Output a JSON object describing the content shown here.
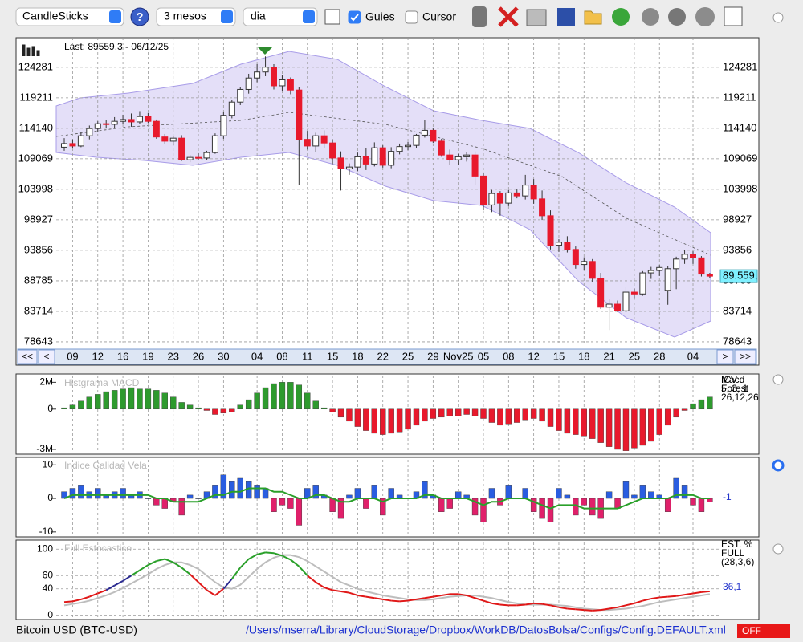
{
  "toolbar": {
    "chart_type": "CandleSticks",
    "help": "?",
    "period": "3 mesos",
    "interval": "dia",
    "guides_label": "Guies",
    "guides_checked": true,
    "cursor_label": "Cursor",
    "cursor_checked": false
  },
  "nav": {
    "first": "<<",
    "prev": "<",
    "next": ">",
    "last": ">>"
  },
  "status_bar": {
    "symbol": "Bitcoin USD (BTC-USD)",
    "config_path": "/Users/mserra/Library/CloudStorage/Dropbox/WorkDB/DatosBolsa/Configs/Config.DEFAULT.xml",
    "state": "OFF"
  },
  "chart_data": [
    {
      "type": "candlestick",
      "annotation": "Last: 89559.3 - 06/12/25",
      "last_price_label": "89.559,",
      "categories": [
        null,
        "09",
        null,
        null,
        "12",
        null,
        null,
        "16",
        null,
        null,
        "19",
        null,
        null,
        "23",
        null,
        null,
        "26",
        null,
        null,
        "30",
        null,
        null,
        null,
        "04",
        null,
        null,
        "08",
        null,
        null,
        "11",
        null,
        null,
        "15",
        null,
        null,
        "18",
        null,
        null,
        "22",
        null,
        null,
        "25",
        null,
        null,
        "29",
        null,
        null,
        "Nov25",
        null,
        null,
        "05",
        null,
        null,
        "08",
        null,
        null,
        "12",
        null,
        null,
        "15",
        null,
        null,
        "18",
        null,
        null,
        "21",
        null,
        null,
        "25",
        null,
        null,
        "28",
        null,
        null,
        null,
        "04",
        null,
        null
      ],
      "ohlc": [
        [
          111000,
          112500,
          110400,
          111600
        ],
        [
          111600,
          112300,
          110800,
          111200
        ],
        [
          111200,
          113500,
          111000,
          112900
        ],
        [
          112900,
          114600,
          112300,
          114100
        ],
        [
          114100,
          115300,
          113600,
          114900
        ],
        [
          114900,
          115500,
          114200,
          114800
        ],
        [
          114800,
          116000,
          114100,
          115300
        ],
        [
          115300,
          116400,
          114800,
          115600
        ],
        [
          115600,
          116600,
          114400,
          115200
        ],
        [
          115200,
          117000,
          114900,
          116100
        ],
        [
          116100,
          116700,
          115000,
          115300
        ],
        [
          115300,
          115600,
          112400,
          112700
        ],
        [
          112700,
          113200,
          111600,
          112000
        ],
        [
          112000,
          112800,
          111300,
          112500
        ],
        [
          112500,
          113000,
          108700,
          108900
        ],
        [
          108900,
          109700,
          108500,
          109300
        ],
        [
          109300,
          110000,
          108800,
          109200
        ],
        [
          109200,
          110400,
          108900,
          110100
        ],
        [
          110100,
          113300,
          109900,
          112900
        ],
        [
          112900,
          116800,
          112400,
          116300
        ],
        [
          116300,
          118900,
          115800,
          118500
        ],
        [
          118500,
          121000,
          118000,
          120600
        ],
        [
          120600,
          123200,
          119900,
          122500
        ],
        [
          122500,
          124800,
          121800,
          123500
        ],
        [
          123500,
          126100,
          122800,
          124300
        ],
        [
          124300,
          124800,
          120600,
          121200
        ],
        [
          121200,
          123000,
          120300,
          122200
        ],
        [
          122200,
          122600,
          119800,
          120500
        ],
        [
          120500,
          121000,
          104700,
          112300
        ],
        [
          112300,
          113700,
          110600,
          111200
        ],
        [
          111200,
          113400,
          110200,
          112900
        ],
        [
          112900,
          113800,
          110800,
          111700
        ],
        [
          111700,
          112300,
          108200,
          109200
        ],
        [
          109200,
          110300,
          103800,
          107400
        ],
        [
          107400,
          108300,
          106400,
          107700
        ],
        [
          107700,
          110100,
          107000,
          109400
        ],
        [
          109400,
          110800,
          107200,
          108200
        ],
        [
          108200,
          111800,
          107800,
          110900
        ],
        [
          110900,
          111300,
          107600,
          108000
        ],
        [
          108000,
          111000,
          107500,
          110300
        ],
        [
          110300,
          111600,
          109800,
          111100
        ],
        [
          111100,
          111900,
          110500,
          111300
        ],
        [
          111300,
          113200,
          110900,
          113000
        ],
        [
          113000,
          115500,
          112600,
          113800
        ],
        [
          113800,
          114100,
          111700,
          112000
        ],
        [
          112000,
          112400,
          109400,
          109700
        ],
        [
          109700,
          110600,
          108000,
          108900
        ],
        [
          108900,
          109900,
          108100,
          109400
        ],
        [
          109400,
          110200,
          108600,
          109700
        ],
        [
          109700,
          110300,
          104700,
          106200
        ],
        [
          106200,
          106800,
          100500,
          101400
        ],
        [
          101400,
          103900,
          100200,
          103300
        ],
        [
          103300,
          103700,
          99600,
          101700
        ],
        [
          101700,
          103900,
          101200,
          103400
        ],
        [
          103400,
          104000,
          102500,
          102900
        ],
        [
          102900,
          106400,
          102300,
          104700
        ],
        [
          104700,
          105700,
          101600,
          102400
        ],
        [
          102400,
          103800,
          98900,
          99600
        ],
        [
          99600,
          100500,
          94000,
          94700
        ],
        [
          94700,
          95700,
          93600,
          95200
        ],
        [
          95200,
          96200,
          93500,
          94000
        ],
        [
          94000,
          94500,
          90800,
          91500
        ],
        [
          91500,
          92700,
          90600,
          92000
        ],
        [
          92000,
          92400,
          88600,
          89200
        ],
        [
          89200,
          90100,
          84100,
          84400
        ],
        [
          84400,
          85800,
          80600,
          84900
        ],
        [
          84900,
          85500,
          83600,
          83800
        ],
        [
          83800,
          87700,
          83600,
          86900
        ],
        [
          86900,
          87500,
          85900,
          86600
        ],
        [
          86600,
          90400,
          86300,
          90100
        ],
        [
          90100,
          91100,
          89100,
          90500
        ],
        [
          90500,
          91400,
          89600,
          91000
        ],
        [
          87200,
          91300,
          84800,
          90800
        ],
        [
          90800,
          92800,
          87400,
          92400
        ],
        [
          92400,
          93900,
          91600,
          93200
        ],
        [
          93200,
          93700,
          91600,
          92600
        ],
        [
          92600,
          92900,
          89500,
          89900
        ],
        [
          89900,
          90100,
          89300,
          89559.3
        ]
      ],
      "ylim": [
        78100,
        129200
      ],
      "yticks": [
        78643,
        83714,
        88785,
        93856,
        98927,
        103998,
        109069,
        114140,
        119211,
        124281
      ],
      "grid": true,
      "up_color": "#ffffff",
      "down_color": "#e8192c"
    },
    {
      "type": "bar",
      "title": "Histgrama MACD",
      "legend": [
        "Macd",
        "Forest",
        "26,12,26"
      ],
      "values": [
        0.1,
        0.3,
        0.6,
        0.9,
        1.1,
        1.3,
        1.4,
        1.5,
        1.6,
        1.5,
        1.5,
        1.4,
        1.2,
        0.9,
        0.5,
        0.3,
        0.1,
        -0.1,
        -0.4,
        -0.3,
        -0.2,
        0.3,
        0.7,
        1.2,
        1.6,
        1.9,
        2.0,
        2.0,
        1.8,
        1.2,
        0.6,
        0.1,
        -0.2,
        -0.6,
        -0.9,
        -1.3,
        -1.6,
        -1.8,
        -1.9,
        -1.8,
        -1.7,
        -1.5,
        -1.2,
        -0.9,
        -0.7,
        -0.6,
        -0.5,
        -0.5,
        -0.4,
        -0.5,
        -0.7,
        -1.0,
        -1.2,
        -1.1,
        -1.0,
        -0.8,
        -0.7,
        -0.9,
        -1.3,
        -1.6,
        -1.8,
        -1.9,
        -2.0,
        -2.2,
        -2.5,
        -2.8,
        -3.0,
        -3.1,
        -2.9,
        -2.7,
        -2.4,
        -1.9,
        -1.2,
        -0.6,
        -0.1,
        0.4,
        0.7,
        0.9
      ],
      "ylim": [
        -3.3,
        2.5
      ],
      "yticks": [
        {
          "value": 2,
          "label": "2M"
        },
        0,
        {
          "value": -3,
          "label": "-3M"
        }
      ],
      "positive_color": "#2e9a2e",
      "negative_color": "#e8192c"
    },
    {
      "type": "bar_line",
      "title": "Indice Calidad Vela",
      "legend": [
        "ICV",
        "5, 3, 1"
      ],
      "values": [
        2,
        3,
        4,
        2,
        3,
        1,
        2,
        3,
        1,
        2,
        0,
        -2,
        -3,
        -1,
        -5,
        1,
        0,
        2,
        4,
        7,
        5,
        6,
        5,
        4,
        3,
        -4,
        -2,
        -3,
        -8,
        3,
        4,
        1,
        -4,
        -6,
        1,
        3,
        -3,
        4,
        -5,
        3,
        1,
        0,
        2,
        5,
        1,
        -4,
        -3,
        2,
        1,
        -5,
        -7,
        3,
        -2,
        4,
        0,
        3,
        -4,
        -6,
        -7,
        3,
        1,
        -5,
        -2,
        -5,
        -6,
        2,
        -3,
        5,
        1,
        4,
        2,
        1,
        -4,
        6,
        4,
        -2,
        -4,
        -1
      ],
      "line": [
        0,
        1,
        1,
        1,
        1,
        1,
        1,
        1,
        1,
        1,
        1,
        0,
        0,
        -1,
        -1,
        -1,
        -1,
        0,
        1,
        1,
        2,
        2,
        3,
        3,
        3,
        2,
        2,
        1,
        0,
        0,
        1,
        1,
        0,
        -1,
        -1,
        0,
        0,
        0,
        -1,
        0,
        0,
        0,
        0,
        1,
        1,
        0,
        0,
        0,
        0,
        -1,
        -2,
        -1,
        -1,
        0,
        0,
        0,
        -1,
        -2,
        -3,
        -2,
        -2,
        -2,
        -3,
        -3,
        -3,
        -3,
        -3,
        -2,
        -1,
        0,
        0,
        0,
        0,
        1,
        1,
        1,
        0,
        0
      ],
      "ylim": [
        -11,
        11.5
      ],
      "yticks": [
        10,
        0,
        -10
      ],
      "positive_color": "#2a5de0",
      "negative_color": "#e0206a",
      "line_color": "#2aa02a"
    },
    {
      "type": "stochastic",
      "title": "Full Estocastico",
      "legend": [
        "EST. %",
        "FULL",
        "(28,3,6)"
      ],
      "k_last_label": "36,1",
      "k": [
        20,
        21,
        24,
        28,
        33,
        38,
        45,
        52,
        60,
        68,
        76,
        82,
        85,
        80,
        72,
        62,
        50,
        38,
        30,
        40,
        55,
        72,
        85,
        92,
        95,
        94,
        90,
        84,
        74,
        60,
        50,
        42,
        38,
        36,
        34,
        30,
        28,
        26,
        24,
        22,
        21,
        22,
        24,
        26,
        28,
        30,
        32,
        32,
        30,
        26,
        22,
        18,
        16,
        15,
        15,
        16,
        18,
        17,
        15,
        12,
        10,
        9,
        8,
        7,
        8,
        10,
        12,
        15,
        18,
        22,
        25,
        27,
        28,
        29,
        31,
        33,
        35,
        36.1
      ],
      "d": [
        15,
        17,
        19,
        22,
        26,
        30,
        35,
        41,
        48,
        55,
        62,
        70,
        76,
        80,
        80,
        76,
        70,
        60,
        50,
        42,
        40,
        46,
        58,
        70,
        80,
        87,
        91,
        91,
        88,
        82,
        74,
        66,
        58,
        50,
        45,
        40,
        36,
        33,
        30,
        28,
        26,
        24,
        23,
        23,
        24,
        26,
        28,
        29,
        30,
        30,
        28,
        26,
        23,
        20,
        18,
        16,
        16,
        16,
        16,
        15,
        14,
        12,
        10,
        9,
        8,
        8,
        9,
        10,
        12,
        14,
        17,
        20,
        22,
        24,
        26,
        28,
        30,
        32
      ],
      "ylim": [
        -4,
        110
      ],
      "yticks": [
        100,
        60,
        40,
        0
      ],
      "high_color": "#2aa02a",
      "mid_color": "#2a2a90",
      "low_color": "#e01818",
      "d_color": "#bdbdbd"
    }
  ]
}
